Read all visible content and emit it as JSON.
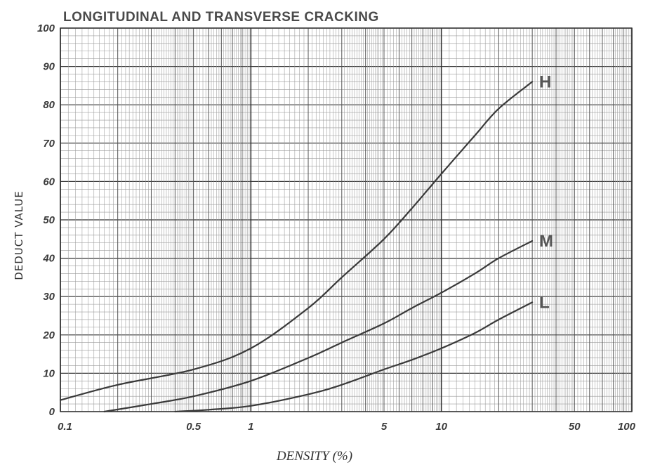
{
  "chart_data": {
    "type": "line",
    "title": "LONGITUDINAL AND TRANSVERSE CRACKING",
    "xlabel": "DENSITY (%)",
    "ylabel": "DEDUCT VALUE",
    "x_scale": "log",
    "xlim": [
      0.1,
      100
    ],
    "ylim": [
      0,
      100
    ],
    "x_ticks": [
      {
        "value": 0.1,
        "label": "0.1"
      },
      {
        "value": 0.5,
        "label": "0.5"
      },
      {
        "value": 1,
        "label": "1"
      },
      {
        "value": 5,
        "label": "5"
      },
      {
        "value": 10,
        "label": "10"
      },
      {
        "value": 50,
        "label": "50"
      },
      {
        "value": 100,
        "label": "100"
      }
    ],
    "y_ticks": [
      0,
      10,
      20,
      30,
      40,
      50,
      60,
      70,
      80,
      90,
      100
    ],
    "grid": true,
    "colors": {
      "grid_minor": "#9a9a9a",
      "grid_major": "#333333",
      "curve": "#3a3a3a",
      "text": "#3a3a3a"
    },
    "series": [
      {
        "name": "H",
        "x": [
          0.1,
          0.2,
          0.5,
          1,
          2,
          3,
          5,
          7,
          10,
          15,
          20,
          30
        ],
        "y": [
          3,
          7,
          11,
          16.5,
          27,
          35,
          45,
          53,
          62,
          72,
          79,
          86
        ]
      },
      {
        "name": "M",
        "x": [
          0.17,
          0.3,
          0.5,
          1,
          2,
          3,
          5,
          7,
          10,
          15,
          20,
          30
        ],
        "y": [
          0,
          2,
          4,
          8,
          14,
          18,
          23,
          27,
          31,
          36,
          40,
          44.5
        ]
      },
      {
        "name": "L",
        "x": [
          0.4,
          0.6,
          1,
          2,
          3,
          5,
          7,
          10,
          15,
          20,
          30
        ],
        "y": [
          0,
          0.5,
          1.5,
          4.5,
          7,
          11,
          13.5,
          16.5,
          20.5,
          24,
          28.5
        ]
      }
    ]
  }
}
